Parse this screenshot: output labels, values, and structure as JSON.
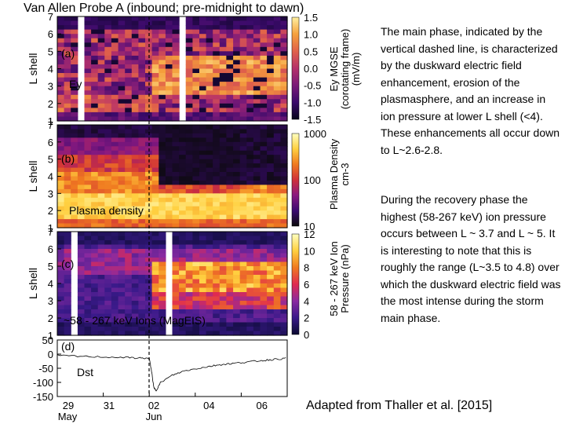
{
  "page_title": "Van Allen Probe A (inbound; pre-midnight to dawn)",
  "notes": {
    "main_phase": "The main phase, indicated by the vertical dashed line, is characterized by the duskward electric field enhancement, erosion of the plasmasphere, and an increase in ion pressure at lower L shell (<4). These enhancements all occur down to L~2.6-2.8.",
    "recovery_phase": "During the recovery phase the highest (58-267 keV) ion pressure occurs between L ~ 3.7 and L ~ 5. It is interesting to note that this is roughly the range (L~3.5 to 4.8) over which the duskward electric field was the most intense during the storm main phase."
  },
  "credit": "Adapted from Thaller et al. [2015]",
  "chart_data": [
    {
      "type": "heatmap",
      "panel_label": "(a)",
      "inner_label": "Ey",
      "ylabel": "L shell",
      "ylim": [
        1,
        7
      ],
      "yticks": [
        "1",
        "2",
        "3",
        "4",
        "5",
        "6",
        "7"
      ],
      "colorbar_label": "Ey MGSE (corotating frame) (mV/m)",
      "colorbar_ticks": [
        "1.5",
        "1.0",
        "0.5",
        "0.0",
        "-0.5",
        "-1.0",
        "-1.5"
      ],
      "colorbar_range": [
        -1.5,
        1.5
      ],
      "colormap": [
        "#06061a",
        "#3a0a6a",
        "#7a1a78",
        "#b5306a",
        "#e0604a",
        "#f5a03c",
        "#fff0a0"
      ],
      "time_columns": 18,
      "description_rows": [
        "L 6-7 dark background",
        "L 4.5-6 mixed reds/purples",
        "L 2.5-4 enhanced reds/oranges after dashed line"
      ]
    },
    {
      "type": "heatmap",
      "panel_label": "(b)",
      "inner_label": "Plasma density",
      "ylabel": "L shell",
      "ylim": [
        1,
        7
      ],
      "yticks": [
        "1",
        "2",
        "3",
        "4",
        "5",
        "6",
        "7"
      ],
      "colorbar_label": "Plasma Density cm-3",
      "colorbar_ticks": [
        "1000",
        "100",
        "10"
      ],
      "colorbar_range": [
        10,
        2000
      ],
      "colormap": [
        "#0a0a0a",
        "#3a0a70",
        "#8a1a80",
        "#d0303a",
        "#f07a20",
        "#ffd040",
        "#ffffc0"
      ]
    },
    {
      "type": "heatmap",
      "panel_label": "(c)",
      "inner_label": "~58 - 267 keV Ions (MagEIS)",
      "ylabel": "L shell",
      "ylim": [
        1,
        7
      ],
      "yticks": [
        "1",
        "2",
        "3",
        "4",
        "5",
        "6",
        "7"
      ],
      "colorbar_label": "58 - 267 keV Ion Pressure (nPa)",
      "colorbar_ticks": [
        "12",
        "10",
        "8",
        "6",
        "4",
        "2",
        "0"
      ],
      "colorbar_range": [
        0,
        12
      ],
      "colormap": [
        "#0a0a30",
        "#3a1a8a",
        "#8a2aa0",
        "#e02a50",
        "#f07a20",
        "#ffd040",
        "#ffffc0"
      ]
    },
    {
      "type": "line",
      "panel_label": "(d)",
      "inner_label": "Dst",
      "ylabel": "",
      "ylim": [
        -150,
        50
      ],
      "yticks": [
        "50",
        "0",
        "-50",
        "-100",
        "-150"
      ],
      "x_labels": [
        "29",
        "31",
        "02",
        "04",
        "06"
      ],
      "x_sublabels": [
        "May",
        "Jun"
      ],
      "x_days": [
        0,
        1,
        2,
        3,
        3.6,
        4,
        4.1,
        4.2,
        4.3,
        4.5,
        5,
        5.5,
        6,
        6.5,
        7,
        7.5,
        8,
        8.5,
        9,
        9.5,
        10
      ],
      "dst_values": [
        -5,
        -8,
        -10,
        -12,
        -14,
        -15,
        -60,
        -120,
        -128,
        -100,
        -75,
        -60,
        -52,
        -45,
        -38,
        -34,
        -30,
        -26,
        -22,
        -18,
        -15
      ],
      "storm_marker_day": 4.0
    }
  ]
}
